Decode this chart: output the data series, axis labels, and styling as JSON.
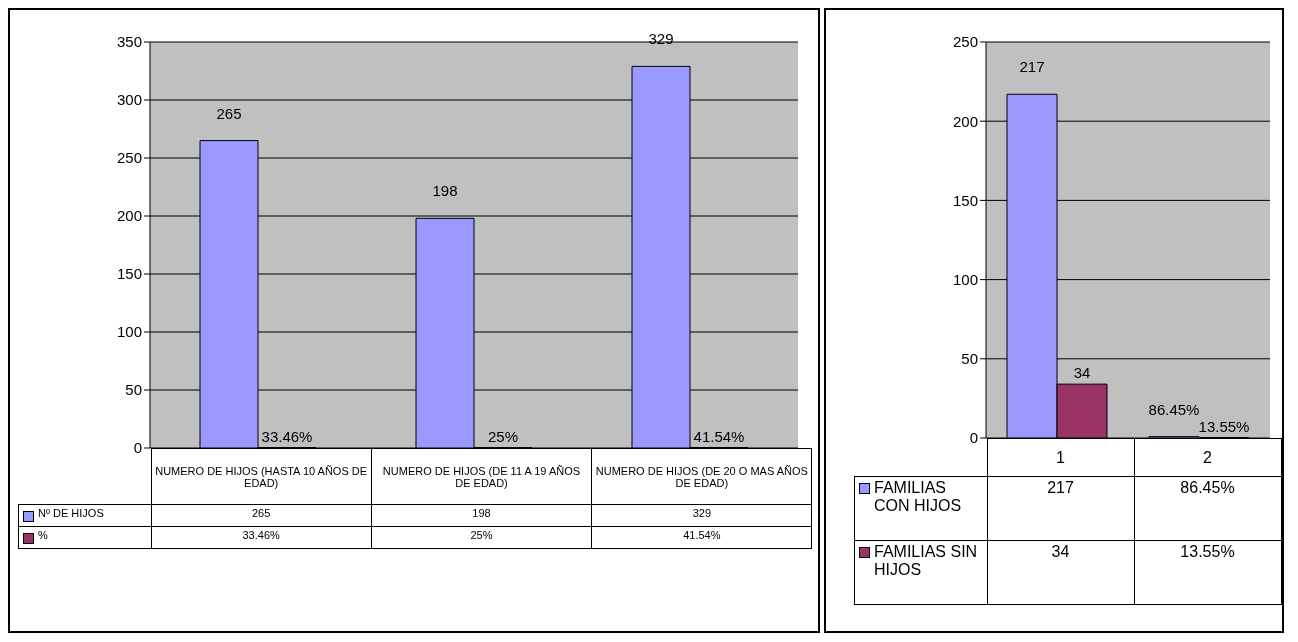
{
  "chart_data": [
    {
      "type": "bar",
      "categories": [
        "NUMERO DE HIJOS (HASTA 10 AÑOS DE EDAD)",
        "NUMERO DE HIJOS (DE 11 A 19 AÑOS DE EDAD)",
        "NUMERO DE HIJOS (DE 20 O MAS AÑOS DE EDAD)"
      ],
      "series": [
        {
          "name": "Nº DE HIJOS",
          "color": "#9999ff",
          "values": [
            265,
            198,
            329
          ],
          "value_labels": [
            "265",
            "198",
            "329"
          ]
        },
        {
          "name": "%",
          "color": "#993366",
          "values": [
            0.3346,
            0.25,
            0.4154
          ],
          "value_labels": [
            "33.46%",
            "25%",
            "41.54%"
          ]
        }
      ],
      "ylim": [
        0,
        350
      ],
      "yticks": [
        0,
        50,
        100,
        150,
        200,
        250,
        300,
        350
      ],
      "grid": "y",
      "legend": "bottom"
    },
    {
      "type": "bar",
      "categories": [
        "1",
        "2"
      ],
      "series": [
        {
          "name": "FAMILIAS CON HIJOS",
          "color": "#9999ff",
          "values": [
            217,
            0.8645
          ],
          "value_labels": [
            "217",
            "86.45%"
          ]
        },
        {
          "name": "FAMILIAS SIN HIJOS",
          "color": "#993366",
          "values": [
            34,
            0.1355
          ],
          "value_labels": [
            "34",
            "13.55%"
          ]
        }
      ],
      "ylim": [
        0,
        250
      ],
      "yticks": [
        0,
        50,
        100,
        150,
        200,
        250
      ],
      "grid": "y",
      "legend": "bottom"
    }
  ]
}
